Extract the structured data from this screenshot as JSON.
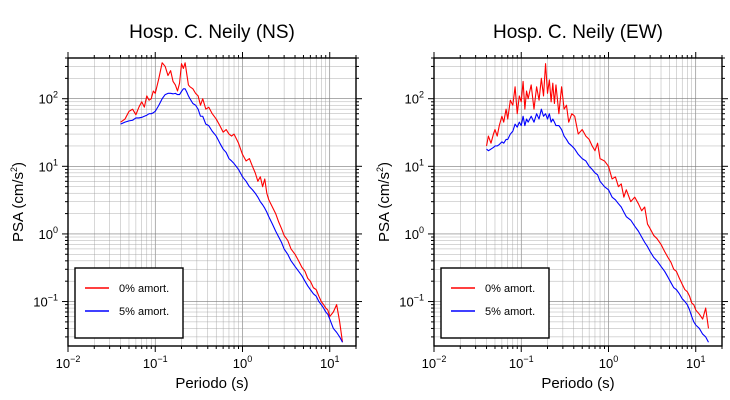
{
  "chart_data": [
    {
      "type": "line",
      "title": "Hosp. C. Neily (NS)",
      "xlabel": "Periodo (s)",
      "ylabel_main": "PSA (cm/s",
      "ylabel_sup": "2",
      "ylabel_end": ")",
      "xscale": "log",
      "yscale": "log",
      "xlim": [
        0.01,
        20
      ],
      "ylim": [
        0.022,
        400
      ],
      "x_ticks": [
        {
          "base": "10",
          "exp": "−2"
        },
        {
          "base": "10",
          "exp": "−1"
        },
        {
          "base": "10",
          "exp": "0"
        },
        {
          "base": "10",
          "exp": "1"
        }
      ],
      "y_ticks": [
        {
          "base": "10",
          "exp": "−1"
        },
        {
          "base": "10",
          "exp": "0"
        },
        {
          "base": "10",
          "exp": "1"
        },
        {
          "base": "10",
          "exp": "2"
        }
      ],
      "grid": true,
      "legend_position": "bottom-left",
      "series": [
        {
          "name": "0% amort.",
          "color": "#ff0000",
          "x": [
            0.04,
            0.045,
            0.05,
            0.055,
            0.06,
            0.065,
            0.07,
            0.075,
            0.08,
            0.085,
            0.09,
            0.095,
            0.1,
            0.11,
            0.12,
            0.13,
            0.14,
            0.15,
            0.16,
            0.17,
            0.18,
            0.19,
            0.2,
            0.21,
            0.22,
            0.23,
            0.24,
            0.25,
            0.27,
            0.29,
            0.31,
            0.33,
            0.35,
            0.38,
            0.41,
            0.45,
            0.5,
            0.55,
            0.6,
            0.65,
            0.7,
            0.75,
            0.8,
            0.9,
            1.0,
            1.1,
            1.2,
            1.3,
            1.4,
            1.5,
            1.6,
            1.7,
            1.8,
            1.9,
            2.0,
            2.2,
            2.4,
            2.6,
            2.8,
            3.0,
            3.3,
            3.6,
            4.0,
            4.4,
            4.8,
            5.2,
            5.6,
            6.0,
            6.5,
            7.0,
            7.5,
            8.0,
            8.5,
            9.0,
            9.5,
            10.0,
            11.0,
            12.0,
            13.0,
            14.0
          ],
          "y": [
            45,
            50,
            65,
            70,
            58,
            75,
            90,
            75,
            110,
            95,
            100,
            130,
            120,
            200,
            340,
            300,
            220,
            260,
            180,
            160,
            130,
            170,
            330,
            280,
            340,
            230,
            160,
            150,
            140,
            120,
            110,
            80,
            100,
            70,
            75,
            60,
            50,
            40,
            32,
            35,
            30,
            28,
            30,
            22,
            15,
            12,
            13,
            10,
            8,
            6,
            7,
            5,
            6.5,
            4,
            3.2,
            2.5,
            2,
            1.5,
            1.2,
            0.95,
            0.8,
            0.6,
            0.5,
            0.4,
            0.32,
            0.28,
            0.22,
            0.2,
            0.16,
            0.15,
            0.12,
            0.1,
            0.09,
            0.08,
            0.075,
            0.06,
            0.07,
            0.09,
            0.05,
            0.025
          ]
        },
        {
          "name": "5% amort.",
          "color": "#0000ff",
          "x": [
            0.04,
            0.045,
            0.05,
            0.055,
            0.06,
            0.065,
            0.07,
            0.075,
            0.08,
            0.085,
            0.09,
            0.095,
            0.1,
            0.11,
            0.12,
            0.13,
            0.14,
            0.15,
            0.16,
            0.17,
            0.18,
            0.19,
            0.2,
            0.21,
            0.22,
            0.23,
            0.24,
            0.25,
            0.27,
            0.29,
            0.31,
            0.33,
            0.35,
            0.38,
            0.41,
            0.45,
            0.5,
            0.55,
            0.6,
            0.65,
            0.7,
            0.75,
            0.8,
            0.9,
            1.0,
            1.1,
            1.2,
            1.3,
            1.4,
            1.5,
            1.6,
            1.7,
            1.8,
            1.9,
            2.0,
            2.2,
            2.4,
            2.6,
            2.8,
            3.0,
            3.3,
            3.6,
            4.0,
            4.4,
            4.8,
            5.2,
            5.6,
            6.0,
            6.5,
            7.0,
            7.5,
            8.0,
            8.5,
            9.0,
            9.5,
            10.0,
            11.0,
            12.0,
            13.0,
            14.0
          ],
          "y": [
            42,
            45,
            47,
            48,
            52,
            52,
            53,
            55,
            57,
            60,
            60,
            62,
            65,
            80,
            100,
            115,
            120,
            120,
            118,
            120,
            115,
            115,
            128,
            140,
            140,
            125,
            110,
            100,
            85,
            80,
            70,
            55,
            55,
            42,
            40,
            33,
            28,
            22,
            18,
            16,
            13,
            12,
            11,
            9,
            7,
            6,
            5,
            4.5,
            4,
            3.5,
            3,
            2.7,
            2.4,
            2.1,
            1.8,
            1.4,
            1.1,
            0.9,
            0.75,
            0.6,
            0.5,
            0.4,
            0.33,
            0.28,
            0.24,
            0.2,
            0.17,
            0.15,
            0.13,
            0.12,
            0.1,
            0.09,
            0.08,
            0.07,
            0.065,
            0.055,
            0.04,
            0.035,
            0.03,
            0.025
          ]
        }
      ]
    },
    {
      "type": "line",
      "title": "Hosp. C. Neily (EW)",
      "xlabel": "Periodo (s)",
      "ylabel_main": "PSA (cm/s",
      "ylabel_sup": "2",
      "ylabel_end": ")",
      "xscale": "log",
      "yscale": "log",
      "xlim": [
        0.01,
        20
      ],
      "ylim": [
        0.022,
        400
      ],
      "x_ticks": [
        {
          "base": "10",
          "exp": "−2"
        },
        {
          "base": "10",
          "exp": "−1"
        },
        {
          "base": "10",
          "exp": "0"
        },
        {
          "base": "10",
          "exp": "1"
        }
      ],
      "y_ticks": [
        {
          "base": "10",
          "exp": "−1"
        },
        {
          "base": "10",
          "exp": "0"
        },
        {
          "base": "10",
          "exp": "1"
        },
        {
          "base": "10",
          "exp": "2"
        }
      ],
      "grid": true,
      "legend_position": "bottom-left",
      "series": [
        {
          "name": "0% amort.",
          "color": "#ff0000",
          "x": [
            0.04,
            0.042,
            0.045,
            0.048,
            0.05,
            0.053,
            0.056,
            0.06,
            0.063,
            0.067,
            0.07,
            0.075,
            0.08,
            0.085,
            0.09,
            0.095,
            0.1,
            0.105,
            0.11,
            0.115,
            0.12,
            0.13,
            0.14,
            0.15,
            0.16,
            0.17,
            0.18,
            0.19,
            0.2,
            0.21,
            0.22,
            0.23,
            0.24,
            0.25,
            0.27,
            0.29,
            0.31,
            0.33,
            0.35,
            0.38,
            0.41,
            0.45,
            0.5,
            0.55,
            0.6,
            0.65,
            0.7,
            0.75,
            0.8,
            0.9,
            1.0,
            1.1,
            1.2,
            1.3,
            1.4,
            1.5,
            1.6,
            1.8,
            2.0,
            2.2,
            2.4,
            2.6,
            2.8,
            3.0,
            3.3,
            3.6,
            4.0,
            4.4,
            4.8,
            5.2,
            5.6,
            6.0,
            6.5,
            7.0,
            7.5,
            8.0,
            8.5,
            9.0,
            9.5,
            10.0,
            11.0,
            12.0,
            13.0,
            14.0
          ],
          "y": [
            20,
            28,
            22,
            30,
            35,
            28,
            40,
            55,
            45,
            70,
            50,
            95,
            80,
            150,
            60,
            110,
            90,
            180,
            70,
            130,
            100,
            160,
            70,
            150,
            95,
            200,
            110,
            330,
            120,
            190,
            90,
            170,
            85,
            160,
            60,
            150,
            70,
            80,
            45,
            60,
            55,
            30,
            35,
            28,
            25,
            20,
            17,
            22,
            13,
            12,
            10,
            6.5,
            7,
            5,
            5.5,
            3.5,
            4.5,
            3,
            3.5,
            2.8,
            2.2,
            2.5,
            1.4,
            1.2,
            0.95,
            0.85,
            0.7,
            0.55,
            0.45,
            0.38,
            0.3,
            0.28,
            0.22,
            0.18,
            0.15,
            0.14,
            0.12,
            0.095,
            0.09,
            0.075,
            0.065,
            0.055,
            0.08,
            0.04
          ]
        },
        {
          "name": "5% amort.",
          "color": "#0000ff",
          "x": [
            0.04,
            0.042,
            0.045,
            0.048,
            0.05,
            0.053,
            0.056,
            0.06,
            0.063,
            0.067,
            0.07,
            0.075,
            0.08,
            0.085,
            0.09,
            0.095,
            0.1,
            0.105,
            0.11,
            0.115,
            0.12,
            0.13,
            0.14,
            0.15,
            0.16,
            0.17,
            0.18,
            0.19,
            0.2,
            0.21,
            0.22,
            0.23,
            0.24,
            0.25,
            0.27,
            0.29,
            0.31,
            0.33,
            0.35,
            0.38,
            0.41,
            0.45,
            0.5,
            0.55,
            0.6,
            0.65,
            0.7,
            0.75,
            0.8,
            0.9,
            1.0,
            1.1,
            1.2,
            1.3,
            1.4,
            1.5,
            1.6,
            1.8,
            2.0,
            2.2,
            2.4,
            2.6,
            2.8,
            3.0,
            3.3,
            3.6,
            4.0,
            4.4,
            4.8,
            5.2,
            5.6,
            6.0,
            6.5,
            7.0,
            7.5,
            8.0,
            8.5,
            9.0,
            9.5,
            10.0,
            11.0,
            12.0,
            13.0,
            14.0
          ],
          "y": [
            18,
            17,
            18,
            19,
            20,
            20,
            21,
            23,
            22,
            25,
            25,
            30,
            33,
            42,
            38,
            45,
            40,
            55,
            40,
            50,
            45,
            55,
            45,
            60,
            50,
            70,
            55,
            60,
            50,
            60,
            45,
            50,
            45,
            40,
            40,
            35,
            28,
            25,
            22,
            20,
            18,
            15,
            13,
            12,
            10,
            9,
            8,
            7.5,
            6,
            5,
            4.5,
            3.5,
            3.2,
            2.8,
            2.5,
            2.1,
            1.8,
            1.6,
            1.3,
            1.1,
            0.9,
            0.75,
            0.65,
            0.55,
            0.45,
            0.4,
            0.33,
            0.28,
            0.23,
            0.19,
            0.16,
            0.15,
            0.13,
            0.11,
            0.1,
            0.09,
            0.075,
            0.06,
            0.05,
            0.045,
            0.04,
            0.033,
            0.03,
            0.025
          ]
        }
      ]
    }
  ]
}
